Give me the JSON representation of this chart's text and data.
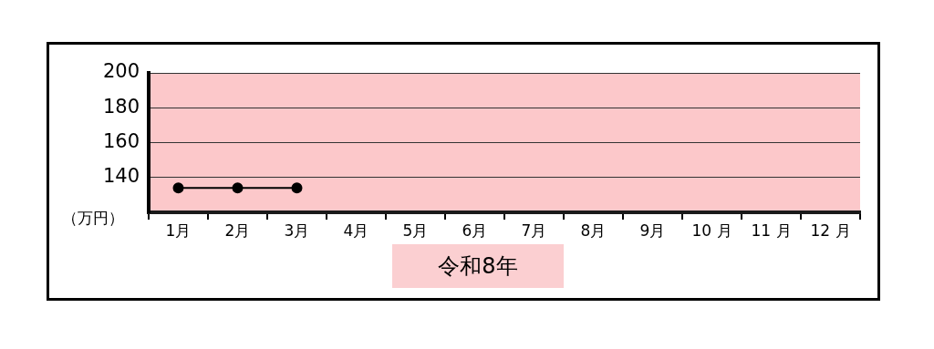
{
  "chart_data": {
    "type": "line",
    "xlabel": "令和8年",
    "ylabel": "（万円）",
    "categories": [
      "1月",
      "2月",
      "3月",
      "4月",
      "5月",
      "6月",
      "7月",
      "8月",
      "9月",
      "10 月",
      "11 月",
      "12 月"
    ],
    "series": [
      {
        "color": "#000000",
        "values": [
          134,
          134,
          134,
          null,
          null,
          null,
          null,
          null,
          null,
          null,
          null,
          null
        ]
      }
    ],
    "ylim": [
      120,
      200
    ],
    "yticks": [
      140,
      160,
      180,
      200
    ],
    "grid": "y",
    "legend": false,
    "marker": "circle",
    "line_style": "solid"
  }
}
